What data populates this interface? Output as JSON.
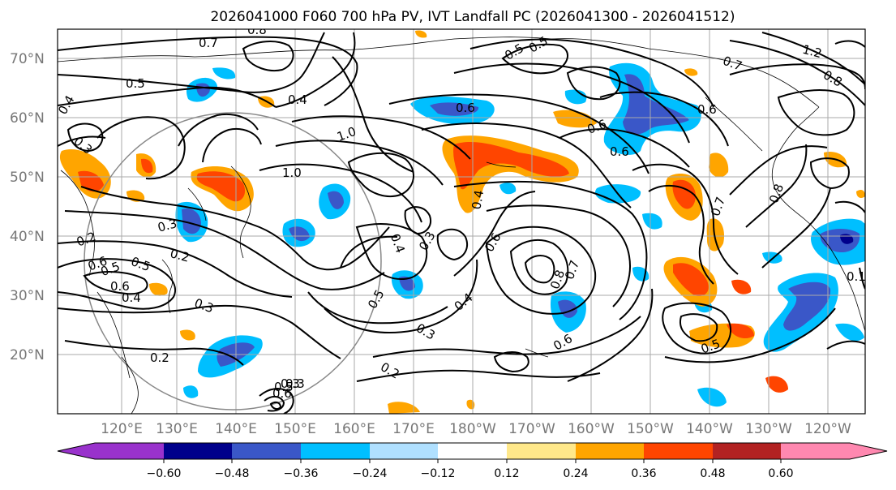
{
  "title": "2026041000 F060 700 hPa PV, IVT Landfall PC (2026041300 - 2026041512)",
  "map": {
    "lat_labels": [
      "70°N",
      "60°N",
      "50°N",
      "40°N",
      "30°N",
      "20°N"
    ],
    "lon_labels": [
      "120°E",
      "130°E",
      "140°E",
      "150°E",
      "160°E",
      "170°E",
      "180°W",
      "170°W",
      "160°W",
      "150°W",
      "140°W",
      "130°W",
      "120°W"
    ]
  },
  "colorbar": {
    "ticks": [
      "−0.60",
      "−0.48",
      "−0.36",
      "−0.24",
      "−0.12",
      "0.12",
      "0.24",
      "0.36",
      "0.48",
      "0.60"
    ],
    "colors": {
      "under": "#9932cc",
      "b1": "#00008b",
      "b2": "#3a57c8",
      "b3": "#00bfff",
      "b4": "#b0e0ff",
      "b5": "#ffffff",
      "b6": "#ffe88a",
      "b7": "#ffa500",
      "b8": "#ff4500",
      "b9": "#b22222",
      "over": "#ff88b0"
    }
  },
  "pv_labels": [
    "0.8",
    "0.7",
    "0.5",
    "0.4",
    "0.4",
    "0.3",
    "1.0",
    "1.0",
    "0.3",
    "0.2",
    "0.6",
    "0.5",
    "0.4",
    "0.2",
    "0.3",
    "0.2",
    "0.3",
    "0.4",
    "0.3",
    "0.4",
    "0.5",
    "0.3",
    "0.6",
    "0.2",
    "0.4",
    "0.8",
    "0.7",
    "0.5",
    "0.6",
    "0.6",
    "0.5",
    "0.6",
    "0.8",
    "0.7",
    "0.5",
    "0.6",
    "1.2",
    "0.8",
    "0.7",
    "0.1",
    "0.6",
    "0.5",
    "0.6",
    "0.5",
    "0.6",
    "0.3"
  ]
}
